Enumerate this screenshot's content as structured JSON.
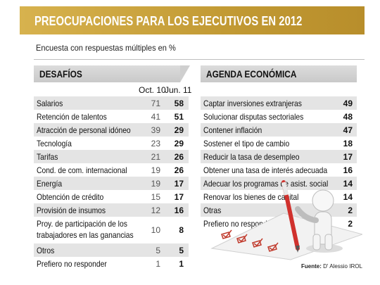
{
  "title": "PREOCUPACIONES PARA LOS EJECUTIVOS EN 2012",
  "subtitle": "Encuesta con respuestas múltiples en %",
  "left": {
    "header": "DESAFÍOS",
    "col1": "Oct. 10",
    "col2": "Jun. 11",
    "rows": [
      {
        "label": "Salarios",
        "v1": "71",
        "v2": "58"
      },
      {
        "label": "Retención de talentos",
        "v1": "41",
        "v2": "51"
      },
      {
        "label": "Atracción de personal idóneo",
        "v1": "39",
        "v2": "29"
      },
      {
        "label": "Tecnología",
        "v1": "23",
        "v2": "29"
      },
      {
        "label": "Tarifas",
        "v1": "21",
        "v2": "26"
      },
      {
        "label": "Cond. de com. internacional",
        "v1": "19",
        "v2": "26"
      },
      {
        "label": "Energía",
        "v1": "19",
        "v2": "17"
      },
      {
        "label": "Obtención de crédito",
        "v1": "15",
        "v2": "17"
      },
      {
        "label": "Provisión de insumos",
        "v1": "12",
        "v2": "16"
      },
      {
        "label": "Proy. de participación de los trabajadores en las ganancias",
        "v1": "10",
        "v2": "8"
      },
      {
        "label": "Otros",
        "v1": "5",
        "v2": "5"
      },
      {
        "label": "Prefiero no responder",
        "v1": "1",
        "v2": "1"
      }
    ]
  },
  "right": {
    "header": "AGENDA ECONÓMICA",
    "rows": [
      {
        "label": "Captar inversiones extranjeras",
        "v": "49"
      },
      {
        "label": "Solucionar disputas sectoriales",
        "v": "48"
      },
      {
        "label": "Contener inflación",
        "v": "47"
      },
      {
        "label": "Sostener el tipo de cambio",
        "v": "18"
      },
      {
        "label": "Reducir la tasa de desempleo",
        "v": "17"
      },
      {
        "label": "Obtener una tasa de interés adecuada",
        "v": "16"
      },
      {
        "label": "Adecuar los programas de asist. social",
        "v": "14"
      },
      {
        "label": "Renovar los bienes de capital",
        "v": "14"
      },
      {
        "label": "Otras",
        "v": "2"
      },
      {
        "label": "Prefiero no responder",
        "v": "2"
      }
    ]
  },
  "source_label": "Fuente:",
  "source_text": "D' Alessio IROL",
  "colors": {
    "gold": "#c9a03d",
    "shade": "#e4e4e4",
    "header_gray": "#d2d2d2",
    "pencil_red": "#d0312d"
  }
}
